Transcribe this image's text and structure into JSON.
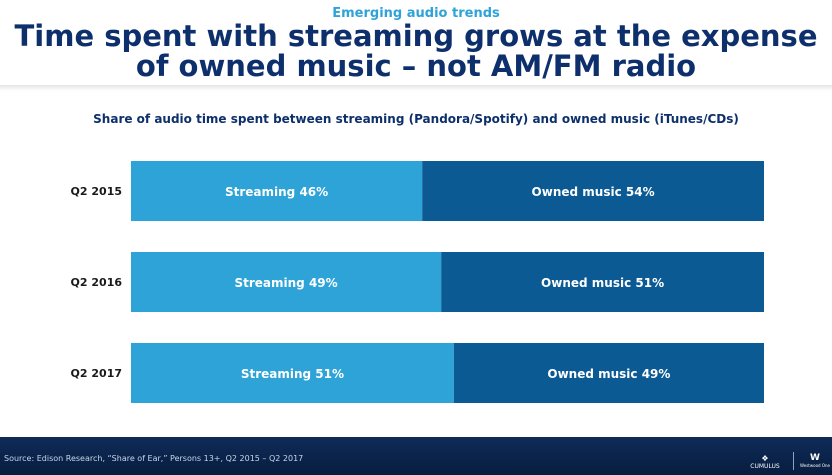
{
  "kicker": "Emerging audio trends",
  "headline_line1": "Time spent with streaming grows at the expense",
  "headline_line2": "of owned music – not AM/FM radio",
  "footer": {
    "source": "Source: Edison Research, “Share of Ear,” Persons 13+, Q2 2015 – Q2 2017",
    "logo1": "CUMULUS",
    "logo2": "Westwood One"
  },
  "colors": {
    "streaming": "#2ea3d8",
    "owned": "#0b5a93",
    "title": "#0d2f6b",
    "kicker": "#2ea3d8",
    "footer": "#0e2b58"
  },
  "chart_data": {
    "type": "bar",
    "orientation": "horizontal",
    "stacked": true,
    "normalized_100": true,
    "title": "Share of audio time spent between streaming (Pandora/Spotify) and owned music (iTunes/CDs)",
    "categories": [
      "Q2 2015",
      "Q2 2016",
      "Q2 2017"
    ],
    "series": [
      {
        "name": "Streaming",
        "values": [
          46,
          49,
          51
        ],
        "labels": [
          "Streaming 46%",
          "Streaming 49%",
          "Streaming 51%"
        ]
      },
      {
        "name": "Owned music",
        "values": [
          54,
          51,
          49
        ],
        "labels": [
          "Owned music 54%",
          "Owned music 51%",
          "Owned music 49%"
        ]
      }
    ],
    "xlim": [
      0,
      100
    ],
    "grid": false,
    "legend": "none"
  }
}
